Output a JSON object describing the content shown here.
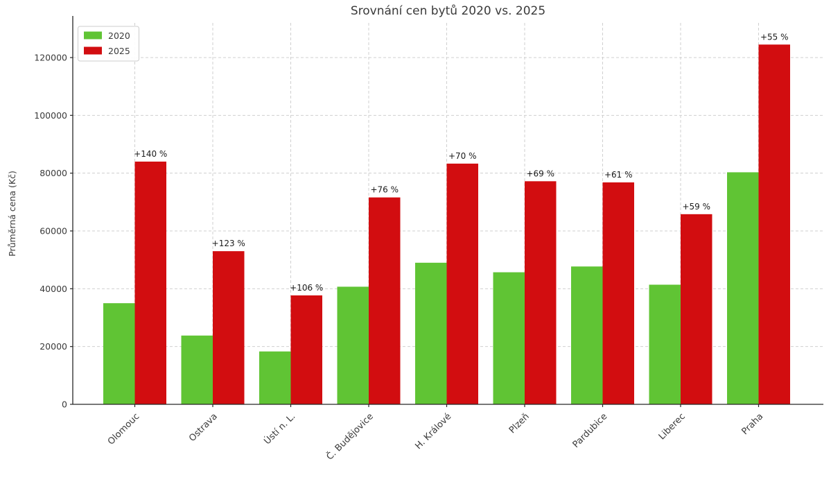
{
  "chart_data": {
    "type": "bar",
    "title": "Srovnání cen bytů 2020 vs. 2025",
    "xlabel": "",
    "ylabel": "Průměrná cena (Kč)",
    "categories": [
      "Olomouc",
      "Ostrava",
      "Ústí n. L.",
      "Č. Budějovice",
      "H. Králové",
      "Plzeň",
      "Pardubice",
      "Liberec",
      "Praha"
    ],
    "series": [
      {
        "name": "2020",
        "color": "#60c434",
        "values": [
          35000,
          23800,
          18300,
          40700,
          49000,
          45700,
          47700,
          41400,
          80300
        ]
      },
      {
        "name": "2025",
        "color": "#d20d10",
        "values": [
          84000,
          53000,
          37700,
          71600,
          83300,
          77200,
          76800,
          65800,
          124500
        ]
      }
    ],
    "annotations": [
      "+140 %",
      "+123 %",
      "+106 %",
      "+76 %",
      "+70 %",
      "+69 %",
      "+61 %",
      "+59 %",
      "+55 %"
    ],
    "yticks": [
      0,
      20000,
      40000,
      60000,
      80000,
      100000,
      120000
    ],
    "ylim": [
      0,
      132000
    ],
    "grid": "dashed-both-axes",
    "grid_color": "#cfcfcf",
    "legend_position": "upper left",
    "text_color": "#3a3a3a",
    "axis_color": "#262626"
  }
}
